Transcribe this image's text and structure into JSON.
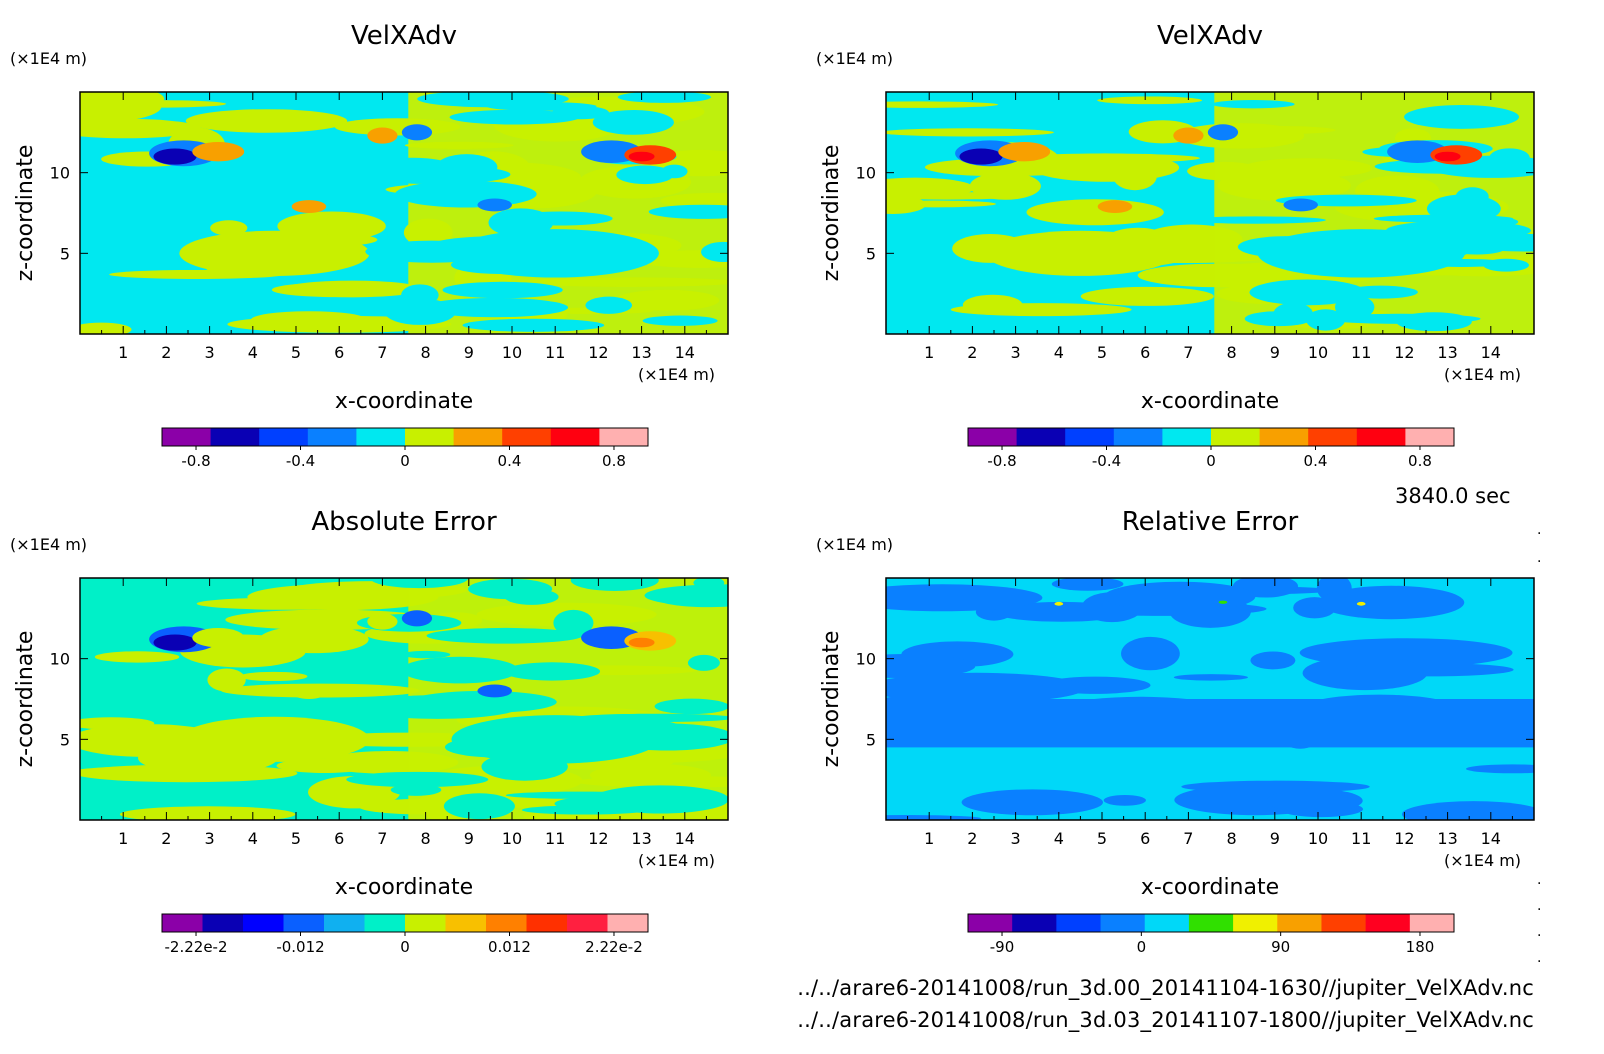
{
  "figure": {
    "time_label": "3840.0 sec",
    "files": [
      "../../arare6-20141008/run_3d.00_20141104-1630//jupiter_VelXAdv.nc",
      "../../arare6-20141008/run_3d.03_20141107-1800//jupiter_VelXAdv.nc"
    ]
  },
  "chart_data": [
    {
      "type": "heatmap",
      "title": "VelXAdv",
      "xlabel": "x-coordinate",
      "ylabel": "z-coordinate",
      "x_unit": "(×1E4 m)",
      "y_unit": "(×1E4 m)",
      "xlim": [
        0,
        15
      ],
      "ylim": [
        0,
        15
      ],
      "x_ticks": [
        "1",
        "2",
        "3",
        "4",
        "5",
        "6",
        "7",
        "8",
        "9",
        "10",
        "11",
        "12",
        "13",
        "14"
      ],
      "y_ticks": [
        "5",
        "10"
      ],
      "colorbar": {
        "levels": 9,
        "colors": [
          "#8b00a8",
          "#0a00b4",
          "#0040ff",
          "#0a80ff",
          "#00e8f0",
          "#c8f000",
          "#f8a000",
          "#ff4000",
          "#ff0010",
          "#ffb0b0"
        ],
        "tick_labels": [
          "-0.8",
          "-0.4",
          "0",
          "0.4",
          "0.8"
        ]
      },
      "background_colors": [
        "#00e8f0",
        "#c8f000"
      ]
    },
    {
      "type": "heatmap",
      "title": "VelXAdv",
      "xlabel": "x-coordinate",
      "ylabel": "z-coordinate",
      "x_unit": "(×1E4 m)",
      "y_unit": "(×1E4 m)",
      "xlim": [
        0,
        15
      ],
      "ylim": [
        0,
        15
      ],
      "x_ticks": [
        "1",
        "2",
        "3",
        "4",
        "5",
        "6",
        "7",
        "8",
        "9",
        "10",
        "11",
        "12",
        "13",
        "14"
      ],
      "y_ticks": [
        "5",
        "10"
      ],
      "colorbar": {
        "levels": 9,
        "colors": [
          "#8b00a8",
          "#0a00b4",
          "#0040ff",
          "#0a80ff",
          "#00e8f0",
          "#c8f000",
          "#f8a000",
          "#ff4000",
          "#ff0010",
          "#ffb0b0"
        ],
        "tick_labels": [
          "-0.8",
          "-0.4",
          "0",
          "0.4",
          "0.8"
        ]
      },
      "background_colors": [
        "#00e8f0",
        "#c8f000"
      ]
    },
    {
      "type": "heatmap",
      "title": "Absolute Error",
      "xlabel": "x-coordinate",
      "ylabel": "z-coordinate",
      "x_unit": "(×1E4 m)",
      "y_unit": "(×1E4 m)",
      "xlim": [
        0,
        15
      ],
      "ylim": [
        0,
        15
      ],
      "x_ticks": [
        "1",
        "2",
        "3",
        "4",
        "5",
        "6",
        "7",
        "8",
        "9",
        "10",
        "11",
        "12",
        "13",
        "14"
      ],
      "y_ticks": [
        "5",
        "10"
      ],
      "colorbar": {
        "levels": 11,
        "colors": [
          "#8b00a8",
          "#0a00b4",
          "#0000ff",
          "#0a60ff",
          "#10b0f0",
          "#00f0c8",
          "#c8f000",
          "#f8c000",
          "#ff8000",
          "#ff3000",
          "#ff2040",
          "#ffb0b0"
        ],
        "tick_labels": [
          "-2.22e-2",
          "-0.012",
          "0",
          "0.012",
          "2.22e-2"
        ]
      },
      "background_colors": [
        "#00f0c8",
        "#c8f000"
      ]
    },
    {
      "type": "heatmap",
      "title": "Relative Error",
      "xlabel": "x-coordinate",
      "ylabel": "z-coordinate",
      "x_unit": "(×1E4 m)",
      "y_unit": "(×1E4 m)",
      "xlim": [
        0,
        15
      ],
      "ylim": [
        0,
        15
      ],
      "x_ticks": [
        "1",
        "2",
        "3",
        "4",
        "5",
        "6",
        "7",
        "8",
        "9",
        "10",
        "11",
        "12",
        "13",
        "14"
      ],
      "y_ticks": [
        "5",
        "10"
      ],
      "colorbar": {
        "levels": 10,
        "colors": [
          "#8b00a8",
          "#0a00b4",
          "#0040ff",
          "#0a80ff",
          "#00d8f8",
          "#30e000",
          "#f0f000",
          "#f8a000",
          "#ff4000",
          "#ff0020",
          "#ffb0b0"
        ],
        "tick_labels": [
          "-90",
          "0",
          "90",
          "180"
        ]
      },
      "background_colors": [
        "#00d8f8",
        "#0a80ff"
      ]
    }
  ]
}
